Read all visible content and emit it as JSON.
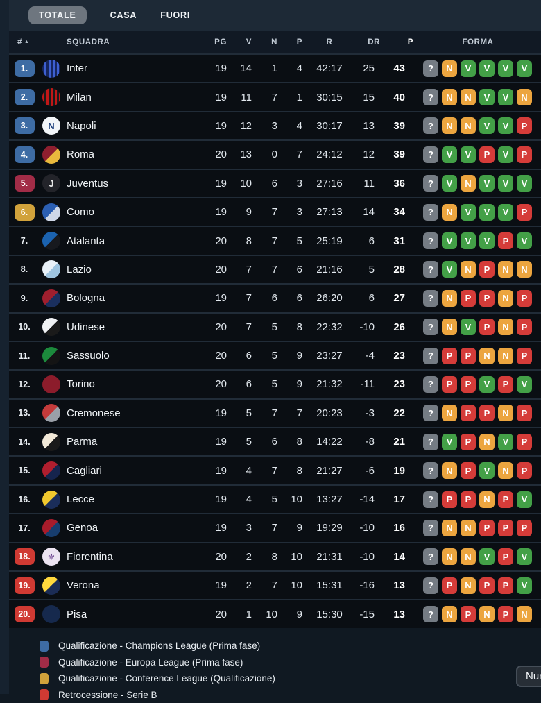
{
  "tabs": {
    "items": [
      {
        "label": "TOTALE",
        "active": true
      },
      {
        "label": "CASA",
        "active": false
      },
      {
        "label": "FUORI",
        "active": false
      }
    ]
  },
  "table": {
    "headers": {
      "rank": "#",
      "team": "SQUADRA",
      "pg": "PG",
      "v": "V",
      "n": "N",
      "p": "P",
      "r": "R",
      "dr": "DR",
      "pts": "P",
      "forma": "FORMA"
    },
    "rows": [
      {
        "rank": "1.",
        "zone": "cl",
        "team": "Inter",
        "logo": {
          "type": "stripes",
          "c1": "#16265e",
          "c2": "#3d5fd0"
        },
        "pg": "19",
        "v": "14",
        "n": "1",
        "p": "4",
        "r": "42:17",
        "dr": "25",
        "pts": "43",
        "form": [
          "?",
          "N",
          "V",
          "V",
          "V",
          "V"
        ]
      },
      {
        "rank": "2.",
        "zone": "cl",
        "team": "Milan",
        "logo": {
          "type": "stripes",
          "c1": "#c21717",
          "c2": "#1a1a1a"
        },
        "pg": "19",
        "v": "11",
        "n": "7",
        "p": "1",
        "r": "30:15",
        "dr": "15",
        "pts": "40",
        "form": [
          "?",
          "N",
          "N",
          "V",
          "V",
          "N"
        ]
      },
      {
        "rank": "3.",
        "zone": "cl",
        "team": "Napoli",
        "logo": {
          "type": "solid",
          "c1": "#f2f5f8",
          "glyph": "N",
          "glyphColor": "#173a78"
        },
        "pg": "19",
        "v": "12",
        "n": "3",
        "p": "4",
        "r": "30:17",
        "dr": "13",
        "pts": "39",
        "form": [
          "?",
          "N",
          "N",
          "V",
          "V",
          "P"
        ]
      },
      {
        "rank": "4.",
        "zone": "cl",
        "team": "Roma",
        "logo": {
          "type": "split",
          "c1": "#8e1f2f",
          "c2": "#e9b93d"
        },
        "pg": "20",
        "v": "13",
        "n": "0",
        "p": "7",
        "r": "24:12",
        "dr": "12",
        "pts": "39",
        "form": [
          "?",
          "V",
          "V",
          "P",
          "V",
          "P"
        ]
      },
      {
        "rank": "5.",
        "zone": "el",
        "team": "Juventus",
        "logo": {
          "type": "solid",
          "c1": "#23242a",
          "glyph": "J",
          "glyphColor": "#e8e8e8"
        },
        "pg": "19",
        "v": "10",
        "n": "6",
        "p": "3",
        "r": "27:16",
        "dr": "11",
        "pts": "36",
        "form": [
          "?",
          "V",
          "N",
          "V",
          "V",
          "V"
        ]
      },
      {
        "rank": "6.",
        "zone": "conf",
        "team": "Como",
        "logo": {
          "type": "split",
          "c1": "#2b5fb3",
          "c2": "#cfd8e8"
        },
        "pg": "19",
        "v": "9",
        "n": "7",
        "p": "3",
        "r": "27:13",
        "dr": "14",
        "pts": "34",
        "form": [
          "?",
          "N",
          "V",
          "V",
          "V",
          "P"
        ]
      },
      {
        "rank": "7.",
        "zone": null,
        "team": "Atalanta",
        "logo": {
          "type": "split",
          "c1": "#1b63b0",
          "c2": "#17191e"
        },
        "pg": "20",
        "v": "8",
        "n": "7",
        "p": "5",
        "r": "25:19",
        "dr": "6",
        "pts": "31",
        "form": [
          "?",
          "V",
          "V",
          "V",
          "P",
          "V"
        ]
      },
      {
        "rank": "8.",
        "zone": null,
        "team": "Lazio",
        "logo": {
          "type": "split",
          "c1": "#e9f1f8",
          "c2": "#9ec4e0"
        },
        "pg": "20",
        "v": "7",
        "n": "7",
        "p": "6",
        "r": "21:16",
        "dr": "5",
        "pts": "28",
        "form": [
          "?",
          "V",
          "N",
          "P",
          "N",
          "N"
        ]
      },
      {
        "rank": "9.",
        "zone": null,
        "team": "Bologna",
        "logo": {
          "type": "split",
          "c1": "#9f1f2e",
          "c2": "#1a2f5e"
        },
        "pg": "19",
        "v": "7",
        "n": "6",
        "p": "6",
        "r": "26:20",
        "dr": "6",
        "pts": "27",
        "form": [
          "?",
          "N",
          "P",
          "P",
          "N",
          "P"
        ]
      },
      {
        "rank": "10.",
        "zone": null,
        "team": "Udinese",
        "logo": {
          "type": "split",
          "c1": "#f0f2f4",
          "c2": "#1a1a1a"
        },
        "pg": "20",
        "v": "7",
        "n": "5",
        "p": "8",
        "r": "22:32",
        "dr": "-10",
        "pts": "26",
        "form": [
          "?",
          "N",
          "V",
          "P",
          "N",
          "P"
        ]
      },
      {
        "rank": "11.",
        "zone": null,
        "team": "Sassuolo",
        "logo": {
          "type": "split",
          "c1": "#1c8a3c",
          "c2": "#141414"
        },
        "pg": "20",
        "v": "6",
        "n": "5",
        "p": "9",
        "r": "23:27",
        "dr": "-4",
        "pts": "23",
        "form": [
          "?",
          "P",
          "P",
          "N",
          "N",
          "P"
        ]
      },
      {
        "rank": "12.",
        "zone": null,
        "team": "Torino",
        "logo": {
          "type": "solid",
          "c1": "#8c1c2b",
          "glyph": "",
          "glyphColor": "#f0c040"
        },
        "pg": "20",
        "v": "6",
        "n": "5",
        "p": "9",
        "r": "21:32",
        "dr": "-11",
        "pts": "23",
        "form": [
          "?",
          "P",
          "P",
          "V",
          "P",
          "V"
        ]
      },
      {
        "rank": "13.",
        "zone": null,
        "team": "Cremonese",
        "logo": {
          "type": "split",
          "c1": "#c43b3b",
          "c2": "#9aa0a8"
        },
        "pg": "19",
        "v": "5",
        "n": "7",
        "p": "7",
        "r": "20:23",
        "dr": "-3",
        "pts": "22",
        "form": [
          "?",
          "N",
          "P",
          "P",
          "N",
          "P"
        ]
      },
      {
        "rank": "14.",
        "zone": null,
        "team": "Parma",
        "logo": {
          "type": "split",
          "c1": "#f2e9d8",
          "c2": "#1a1a1a"
        },
        "pg": "19",
        "v": "5",
        "n": "6",
        "p": "8",
        "r": "14:22",
        "dr": "-8",
        "pts": "21",
        "form": [
          "?",
          "V",
          "P",
          "N",
          "V",
          "P"
        ]
      },
      {
        "rank": "15.",
        "zone": null,
        "team": "Cagliari",
        "logo": {
          "type": "split",
          "c1": "#b01e2e",
          "c2": "#15244d"
        },
        "pg": "19",
        "v": "4",
        "n": "7",
        "p": "8",
        "r": "21:27",
        "dr": "-6",
        "pts": "19",
        "form": [
          "?",
          "N",
          "P",
          "V",
          "N",
          "P"
        ]
      },
      {
        "rank": "16.",
        "zone": null,
        "team": "Lecce",
        "logo": {
          "type": "split",
          "c1": "#f0c82e",
          "c2": "#1a2d5a"
        },
        "pg": "19",
        "v": "4",
        "n": "5",
        "p": "10",
        "r": "13:27",
        "dr": "-14",
        "pts": "17",
        "form": [
          "?",
          "P",
          "P",
          "N",
          "P",
          "V"
        ]
      },
      {
        "rank": "17.",
        "zone": null,
        "team": "Genoa",
        "logo": {
          "type": "split",
          "c1": "#a81c2b",
          "c2": "#173d6e"
        },
        "pg": "19",
        "v": "3",
        "n": "7",
        "p": "9",
        "r": "19:29",
        "dr": "-10",
        "pts": "16",
        "form": [
          "?",
          "N",
          "N",
          "P",
          "P",
          "P"
        ]
      },
      {
        "rank": "18.",
        "zone": "rel",
        "team": "Fiorentina",
        "logo": {
          "type": "solid",
          "c1": "#ece4f2",
          "glyph": "⚜",
          "glyphColor": "#5a2d82"
        },
        "pg": "20",
        "v": "2",
        "n": "8",
        "p": "10",
        "r": "21:31",
        "dr": "-10",
        "pts": "14",
        "form": [
          "?",
          "N",
          "N",
          "V",
          "P",
          "V"
        ]
      },
      {
        "rank": "19.",
        "zone": "rel",
        "team": "Verona",
        "logo": {
          "type": "split",
          "c1": "#ffd83d",
          "c2": "#1b2c55"
        },
        "pg": "19",
        "v": "2",
        "n": "7",
        "p": "10",
        "r": "15:31",
        "dr": "-16",
        "pts": "13",
        "form": [
          "?",
          "P",
          "N",
          "P",
          "P",
          "V"
        ]
      },
      {
        "rank": "20.",
        "zone": "rel",
        "team": "Pisa",
        "logo": {
          "type": "solid",
          "c1": "#16294d",
          "glyph": "",
          "glyphColor": "#ffffff"
        },
        "pg": "20",
        "v": "1",
        "n": "10",
        "p": "9",
        "r": "15:30",
        "dr": "-15",
        "pts": "13",
        "form": [
          "?",
          "N",
          "P",
          "N",
          "P",
          "N"
        ]
      }
    ]
  },
  "legend": {
    "items": [
      {
        "color": "#3e6ca4",
        "label": "Qualificazione - Champions League (Prima fase)"
      },
      {
        "color": "#a22c47",
        "label": "Qualificazione - Europa League (Prima fase)"
      },
      {
        "color": "#d1a23b",
        "label": "Qualificazione - Conference League (Qualificazione)"
      },
      {
        "color": "#d03a33",
        "label": "Retrocessione - Serie B"
      }
    ]
  },
  "tooltip": {
    "text": "Num"
  },
  "colors": {
    "zones": {
      "cl": "#3e6ca4",
      "el": "#a22c47",
      "conf": "#d1a23b",
      "rel": "#d03a33"
    },
    "form": {
      "V": "#43a047",
      "N": "#eca53f",
      "P": "#d53c39",
      "?": "#757c84"
    }
  }
}
